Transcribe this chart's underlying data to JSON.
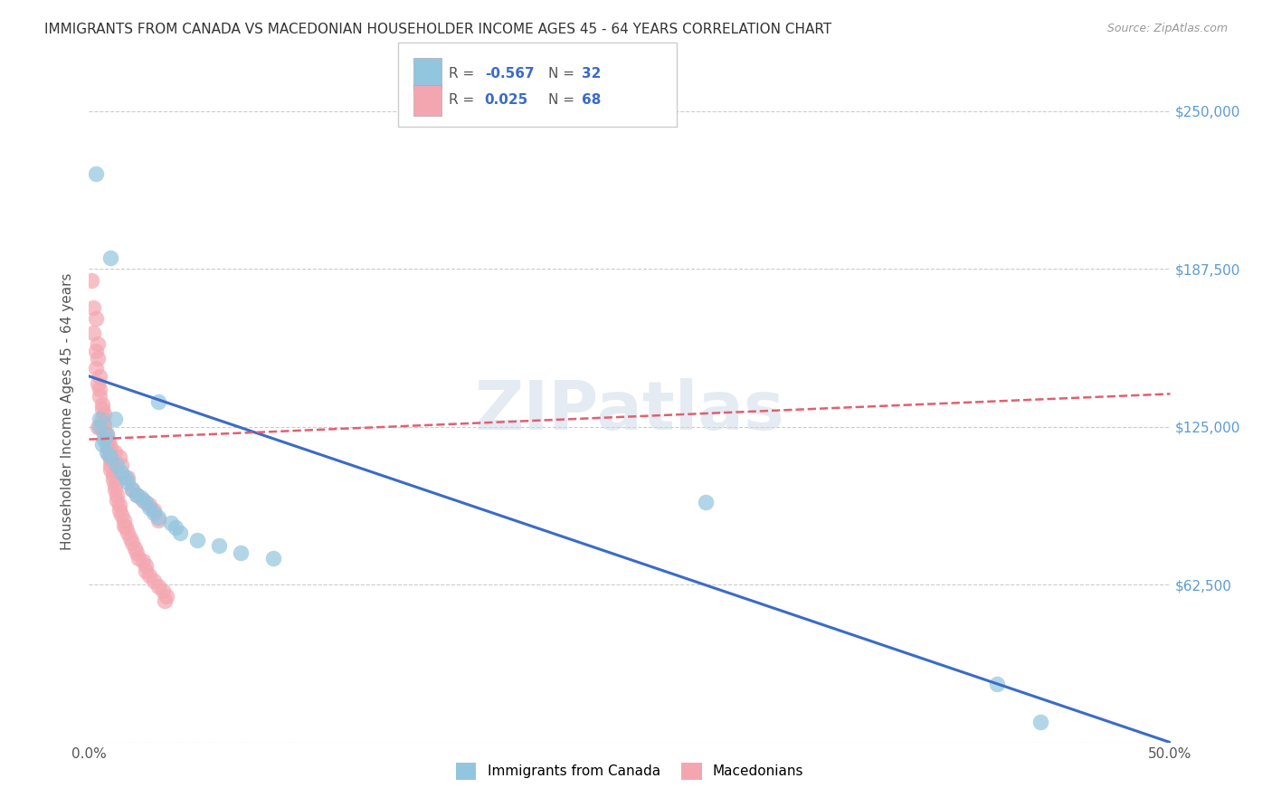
{
  "title": "IMMIGRANTS FROM CANADA VS MACEDONIAN HOUSEHOLDER INCOME AGES 45 - 64 YEARS CORRELATION CHART",
  "source": "Source: ZipAtlas.com",
  "ylabel": "Householder Income Ages 45 - 64 years",
  "xlim": [
    0.0,
    0.5
  ],
  "ylim": [
    0,
    262000
  ],
  "yticks": [
    0,
    62500,
    125000,
    187500,
    250000
  ],
  "ytick_labels": [
    "",
    "$62,500",
    "$125,000",
    "$187,500",
    "$250,000"
  ],
  "xticks": [
    0.0,
    0.1,
    0.2,
    0.3,
    0.4,
    0.5
  ],
  "xtick_labels": [
    "0.0%",
    "",
    "",
    "",
    "",
    "50.0%"
  ],
  "watermark": "ZIPatlas",
  "canada_color": "#92C5DE",
  "macedonian_color": "#F4A6B0",
  "canada_line_color": "#3B6BC8",
  "macedonian_line_color": "#E06070",
  "background_color": "#FFFFFF",
  "right_tick_color": "#5B9BD5",
  "canada_scatter": [
    [
      0.003,
      225000
    ],
    [
      0.01,
      192000
    ],
    [
      0.032,
      135000
    ],
    [
      0.005,
      128000
    ],
    [
      0.005,
      125000
    ],
    [
      0.008,
      122000
    ],
    [
      0.007,
      120000
    ],
    [
      0.006,
      118000
    ],
    [
      0.008,
      115000
    ],
    [
      0.01,
      113000
    ],
    [
      0.012,
      128000
    ],
    [
      0.013,
      110000
    ],
    [
      0.015,
      107000
    ],
    [
      0.017,
      105000
    ],
    [
      0.018,
      103000
    ],
    [
      0.02,
      100000
    ],
    [
      0.022,
      98000
    ],
    [
      0.024,
      97000
    ],
    [
      0.026,
      95000
    ],
    [
      0.028,
      93000
    ],
    [
      0.03,
      91000
    ],
    [
      0.032,
      89000
    ],
    [
      0.038,
      87000
    ],
    [
      0.04,
      85000
    ],
    [
      0.042,
      83000
    ],
    [
      0.05,
      80000
    ],
    [
      0.06,
      78000
    ],
    [
      0.07,
      75000
    ],
    [
      0.085,
      73000
    ],
    [
      0.285,
      95000
    ],
    [
      0.42,
      23000
    ],
    [
      0.44,
      8000
    ]
  ],
  "macedonian_scatter": [
    [
      0.001,
      183000
    ],
    [
      0.002,
      172000
    ],
    [
      0.003,
      168000
    ],
    [
      0.002,
      162000
    ],
    [
      0.004,
      158000
    ],
    [
      0.003,
      155000
    ],
    [
      0.004,
      152000
    ],
    [
      0.003,
      148000
    ],
    [
      0.005,
      145000
    ],
    [
      0.004,
      142000
    ],
    [
      0.005,
      140000
    ],
    [
      0.005,
      137000
    ],
    [
      0.006,
      134000
    ],
    [
      0.006,
      132000
    ],
    [
      0.007,
      130000
    ],
    [
      0.006,
      128000
    ],
    [
      0.007,
      126000
    ],
    [
      0.007,
      124000
    ],
    [
      0.008,
      122000
    ],
    [
      0.008,
      120000
    ],
    [
      0.008,
      118000
    ],
    [
      0.009,
      116000
    ],
    [
      0.009,
      114000
    ],
    [
      0.01,
      112000
    ],
    [
      0.01,
      110000
    ],
    [
      0.01,
      108000
    ],
    [
      0.011,
      106000
    ],
    [
      0.011,
      104000
    ],
    [
      0.012,
      102000
    ],
    [
      0.012,
      100000
    ],
    [
      0.013,
      98000
    ],
    [
      0.013,
      96000
    ],
    [
      0.014,
      94000
    ],
    [
      0.014,
      92000
    ],
    [
      0.015,
      90000
    ],
    [
      0.016,
      88000
    ],
    [
      0.016,
      86000
    ],
    [
      0.017,
      85000
    ],
    [
      0.018,
      83000
    ],
    [
      0.019,
      81000
    ],
    [
      0.02,
      79000
    ],
    [
      0.021,
      77000
    ],
    [
      0.022,
      75000
    ],
    [
      0.023,
      73000
    ],
    [
      0.025,
      72000
    ],
    [
      0.026,
      70000
    ],
    [
      0.026,
      68000
    ],
    [
      0.028,
      66000
    ],
    [
      0.03,
      64000
    ],
    [
      0.032,
      62000
    ],
    [
      0.034,
      60000
    ],
    [
      0.036,
      58000
    ],
    [
      0.004,
      125000
    ],
    [
      0.006,
      124000
    ],
    [
      0.007,
      122000
    ],
    [
      0.008,
      120000
    ],
    [
      0.009,
      119000
    ],
    [
      0.01,
      117000
    ],
    [
      0.012,
      115000
    ],
    [
      0.014,
      113000
    ],
    [
      0.015,
      110000
    ],
    [
      0.018,
      105000
    ],
    [
      0.02,
      100000
    ],
    [
      0.022,
      98000
    ],
    [
      0.025,
      96000
    ],
    [
      0.028,
      94000
    ],
    [
      0.03,
      92000
    ],
    [
      0.032,
      88000
    ],
    [
      0.035,
      56000
    ]
  ],
  "canada_line": [
    [
      0.0,
      145000
    ],
    [
      0.5,
      0
    ]
  ],
  "macedonian_line": [
    [
      0.0,
      120000
    ],
    [
      0.5,
      138000
    ]
  ]
}
